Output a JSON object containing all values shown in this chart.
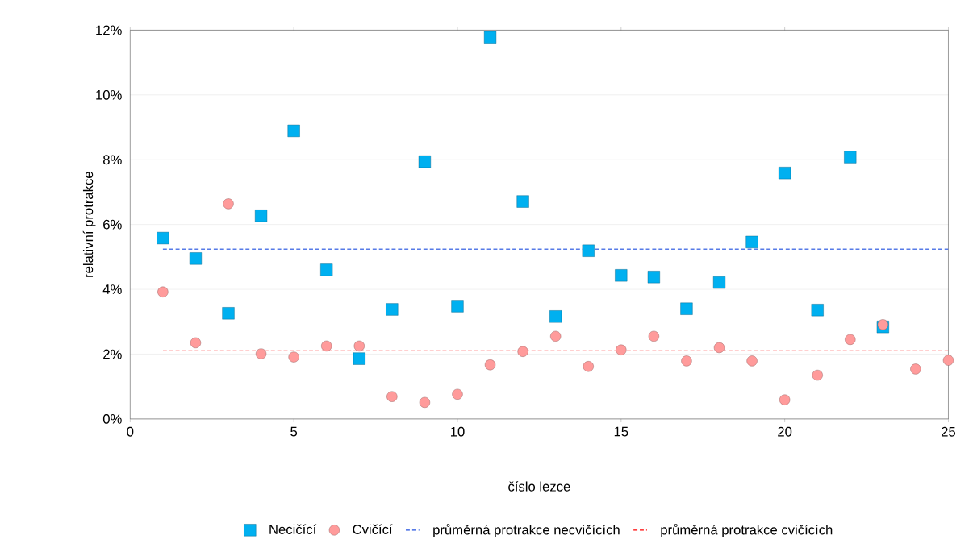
{
  "chart_data": {
    "type": "scatter",
    "xlabel": "číslo lezce",
    "ylabel": "relativní protrakce",
    "xlim": [
      0,
      25
    ],
    "xticks": [
      0,
      5,
      10,
      15,
      20,
      25
    ],
    "ylim": [
      0,
      12
    ],
    "yticks": [
      {
        "value": 0,
        "label": "0%"
      },
      {
        "value": 2,
        "label": "2%"
      },
      {
        "value": 4,
        "label": "4%"
      },
      {
        "value": 6,
        "label": "6%"
      },
      {
        "value": 8,
        "label": "8%"
      },
      {
        "value": 10,
        "label": "10%"
      },
      {
        "value": 12,
        "label": "12%"
      }
    ],
    "grid": "y",
    "legend": "bottom",
    "series": [
      {
        "name": "Necičící",
        "marker": "square",
        "color": "#00b0f0",
        "x": [
          1,
          2,
          3,
          4,
          5,
          6,
          7,
          8,
          9,
          10,
          11,
          12,
          13,
          14,
          15,
          16,
          17,
          18,
          19,
          20,
          21,
          22,
          23
        ],
        "values": [
          5.58,
          4.95,
          3.26,
          6.27,
          8.89,
          4.6,
          1.86,
          3.38,
          7.94,
          3.48,
          11.78,
          6.71,
          3.16,
          5.19,
          4.43,
          4.38,
          3.4,
          4.21,
          5.46,
          7.59,
          3.36,
          8.08,
          2.84
        ]
      },
      {
        "name": "Cvičící",
        "marker": "circle",
        "color": "#ff9b9b",
        "x": [
          1,
          2,
          3,
          4,
          5,
          6,
          7,
          8,
          9,
          10,
          11,
          12,
          13,
          14,
          15,
          16,
          17,
          18,
          19,
          20,
          21,
          22,
          23,
          24,
          25
        ],
        "values": [
          3.92,
          2.35,
          6.64,
          2.01,
          1.91,
          2.25,
          2.25,
          0.69,
          0.51,
          0.76,
          1.67,
          2.08,
          2.55,
          1.62,
          2.13,
          2.55,
          1.79,
          2.2,
          1.79,
          0.59,
          1.35,
          2.45,
          2.91,
          1.54,
          1.81
        ]
      },
      {
        "name": "průměrná protrakce necvičících",
        "type": "line",
        "marker": "none",
        "line_style": "dashed",
        "color": "#2050e0",
        "x": [
          1,
          25
        ],
        "values": [
          5.24,
          5.24
        ]
      },
      {
        "name": "průměrná protrakce cvičících",
        "type": "line",
        "marker": "none",
        "line_style": "dashed",
        "color": "#ff0000",
        "x": [
          1,
          25
        ],
        "values": [
          2.1,
          2.1
        ]
      }
    ]
  }
}
